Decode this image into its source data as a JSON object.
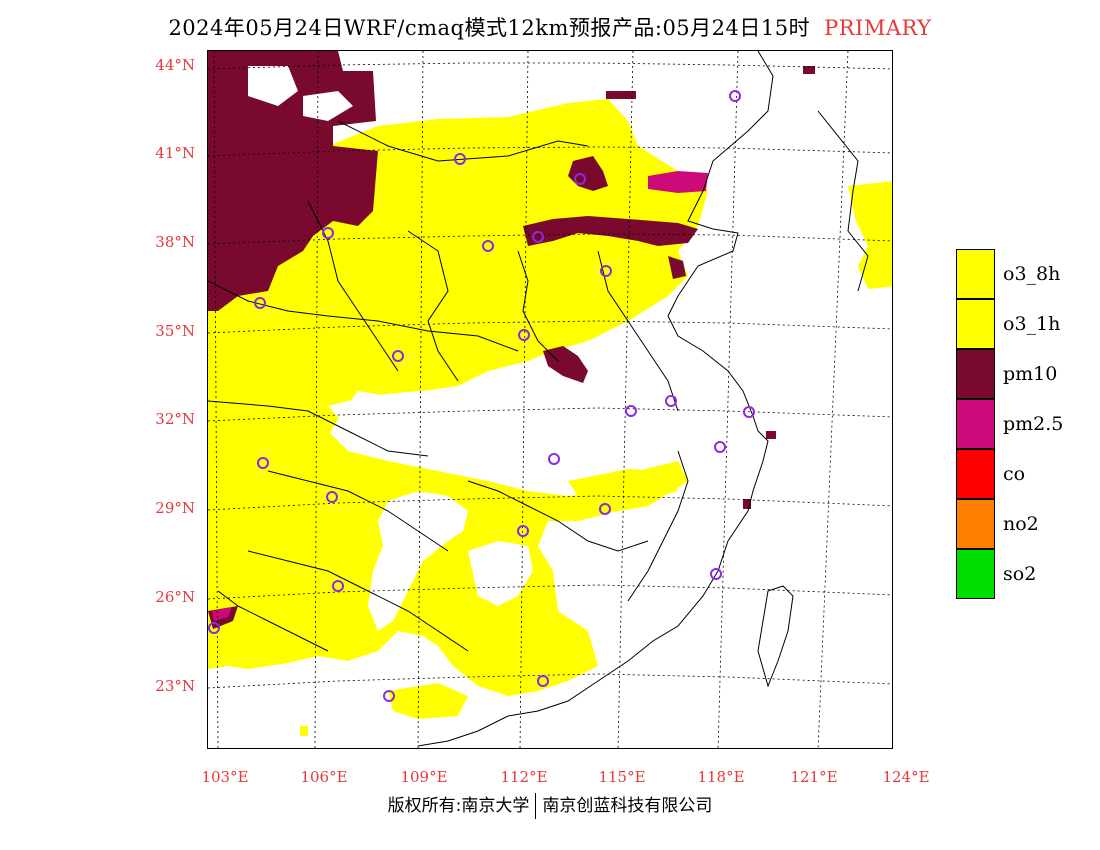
{
  "title": {
    "main": "2024年05月24日WRF/cmaq模式12km预报产品:05月24日15时",
    "tag": "PRIMARY"
  },
  "colors": {
    "o3_8h": "#ffff00",
    "o3_1h": "#ffff00",
    "pm10": "#7a0a2d",
    "pm2_5": "#cc0a7a",
    "co": "#ff0000",
    "no2": "#ff7f00",
    "so2": "#00dd00",
    "axis_label": "#e8383a",
    "station_marker": "#8a2be2"
  },
  "axes": {
    "lat_labels": [
      "44°N",
      "41°N",
      "38°N",
      "35°N",
      "32°N",
      "29°N",
      "26°N",
      "23°N"
    ],
    "lon_labels": [
      "103°E",
      "106°E",
      "109°E",
      "112°E",
      "115°E",
      "118°E",
      "121°E",
      "124°E"
    ]
  },
  "legend": [
    {
      "key": "o3_8h",
      "label": "o3_8h"
    },
    {
      "key": "o3_1h",
      "label": "o3_1h"
    },
    {
      "key": "pm10",
      "label": "pm10"
    },
    {
      "key": "pm2_5",
      "label": "pm2.5"
    },
    {
      "key": "co",
      "label": "co"
    },
    {
      "key": "no2",
      "label": "no2"
    },
    {
      "key": "so2",
      "label": "so2"
    }
  ],
  "footer": {
    "left": "版权所有:南京大学",
    "right": "南京创蓝科技有限公司"
  }
}
